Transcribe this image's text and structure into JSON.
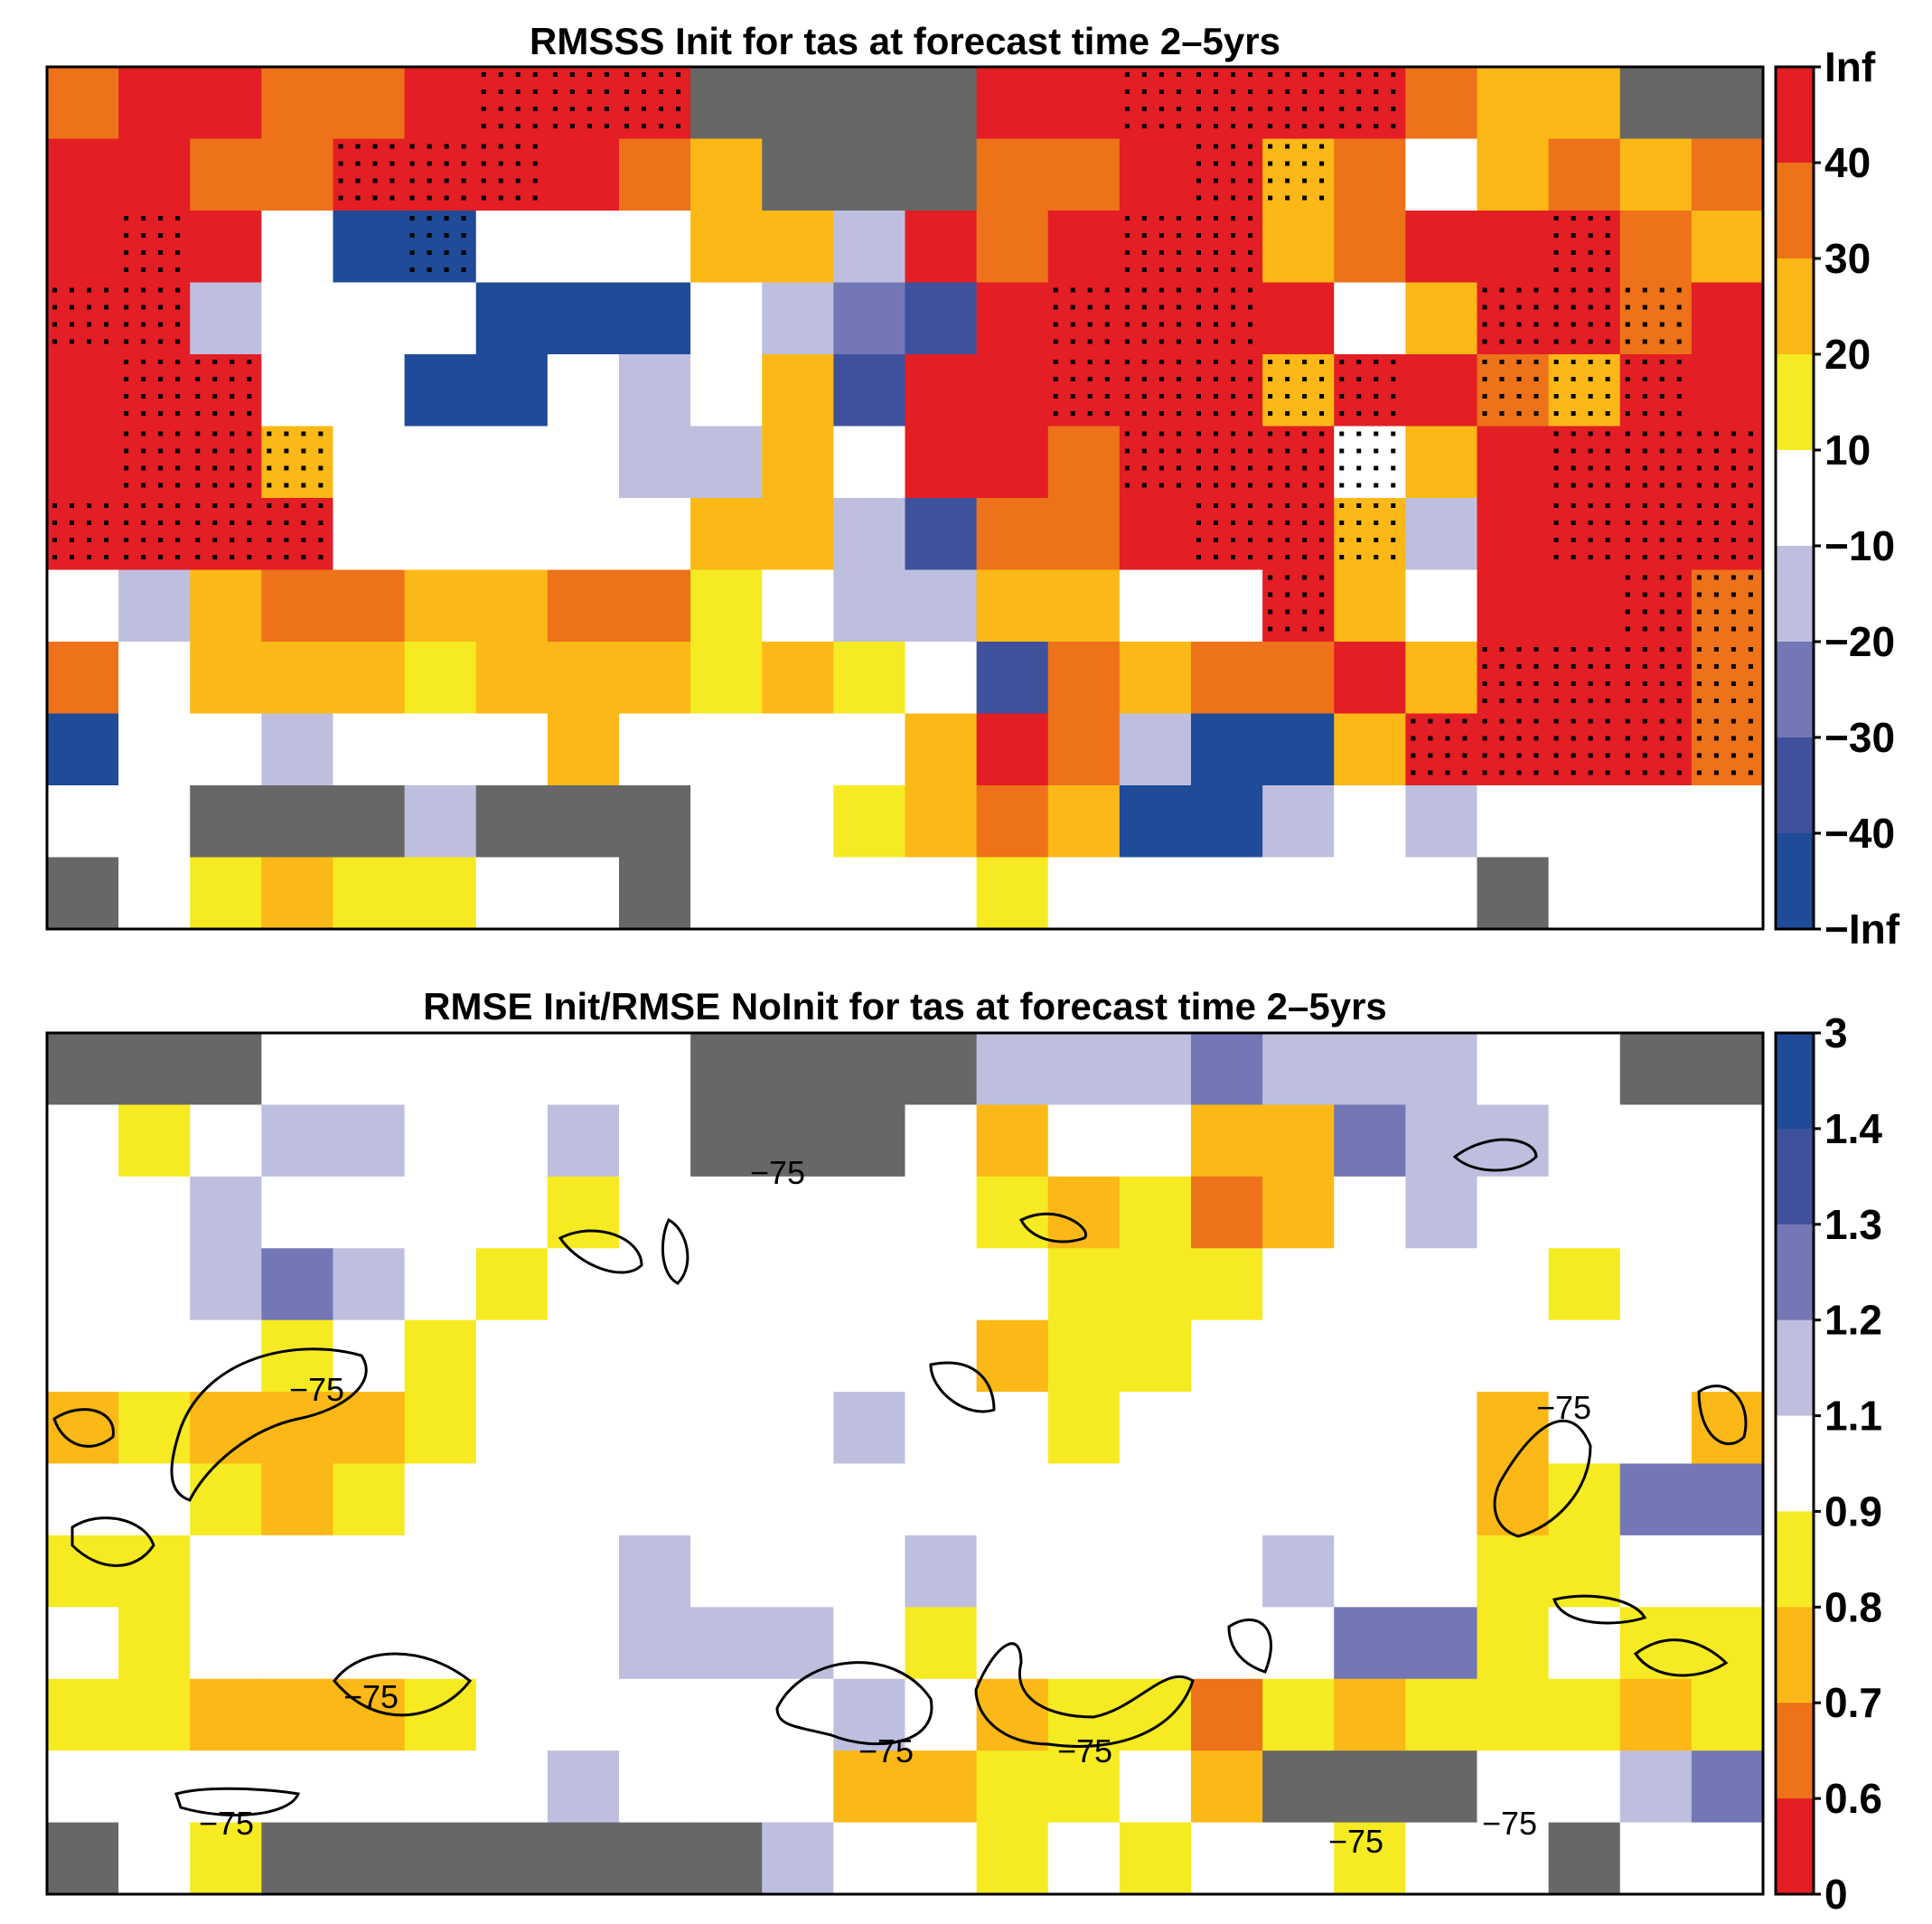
{
  "chart_data": [
    {
      "type": "heatmap",
      "title": "RMSSS Init for tas at forecast time 2–5yrs",
      "colorbar_labels": [
        "Inf",
        "40",
        "30",
        "20",
        "10",
        "−10",
        "−20",
        "−30",
        "−40",
        "−Inf"
      ],
      "colorbar_colors": [
        "#e31e24",
        "#ee7219",
        "#fbb816",
        "#f6ea22",
        "#ffffff",
        "#bebfdf",
        "#7377b5",
        "#3f519c",
        "#1f4b98"
      ],
      "legend_key": {
        "R": 0,
        "O": 1,
        "A": 2,
        "Y": 3,
        "W": 4,
        "L": 5,
        "M": 6,
        "B": 7,
        "D": 8,
        "G": "missing"
      },
      "missing_color": "#676767",
      "grid_rows": [
        "ORROORRRRGGGGRRRRRROAAGG",
        "RROORRRROAGGGOORRAOWAOAO",
        "RRRWDDWWWAALRORRRAORRROA",
        "RRLWWWDDDWLMBRRRRRWARROR",
        "RRRWWDDWLWABRRRRRARROARR",
        "RRRAWWWWLLAWRRORRRWARRRR",
        "RRRRWWWWWAALBOORRRALRRRR",
        "WLAOOAAOOYWLLAAWWRAWRRRO",
        "OWAAAYAAAYAYWBOAOORARRRO",
        "DWWLWWWAWWWWAROLDDARRRRO",
        "WWGGGLGGGWWYAOADDLWLWWWW",
        "GWYAYYWWGWWWWYWWWWWWGWWW"
      ],
      "stipple_rows": [
        "000000111000000111100000",
        "000011100000000011000000",
        "010001000000000110000100",
        "110000000000001110001110",
        "011000000000001111101110",
        "011100000000000111100111",
        "111100000000000011100111",
        "000000000000000001000011",
        "000000000000000000001111",
        "000000000000000000011111",
        "000000000000000000000000",
        "000000000000000000000000"
      ]
    },
    {
      "type": "heatmap",
      "title": "RMSE Init/RMSE NoInit for tas at forecast time 2–5yrs",
      "colorbar_labels": [
        "3",
        "1.4",
        "1.3",
        "1.2",
        "1.1",
        "0.9",
        "0.8",
        "0.7",
        "0.6",
        "0"
      ],
      "colorbar_colors": [
        "#1f4b98",
        "#3f519c",
        "#7377b5",
        "#bebfdf",
        "#ffffff",
        "#f6ea22",
        "#fbb816",
        "#ee7219",
        "#e31e24"
      ],
      "legend_key": {
        "D": 0,
        "B": 1,
        "M": 2,
        "L": 3,
        "W": 4,
        "Y": 5,
        "A": 6,
        "O": 7,
        "R": 8,
        "G": "missing"
      },
      "missing_color": "#676767",
      "grid_rows": [
        "GGGWWWWWWGGGGLLLMLLLWWGG",
        "WYWLLWWLWGGGWAWWAAMLLWWW",
        "WWLWWWWYWWWWWYAYOAWLWWWW",
        "WWLMLWYWWWWWWWYYYWWWWYWW",
        "WWWYWYWWWWWWWAYYWWWWWWWW",
        "AYAAAYWWWWWLWWYWWWWWAWWA",
        "WWYAYWWWWWWWWWWWWWWWAYMM",
        "YYWWWWWWLWWWLWWWWLWWYYWW",
        "WYWWWWWWLLLWYWWWWWMMYWYY",
        "YYAAAYWWWWWLWAYYOYAYYYAY",
        "WWWWWWWLWWWAAYYWAGGGWWLM",
        "GWYGGGGGGGLWWYWYWWYWWGWW"
      ],
      "contour_level_label": "−75",
      "contour_labels": [
        "−75",
        "−75",
        "−75",
        "−75",
        "−75",
        "−75",
        "−75",
        "−75",
        "−75"
      ]
    }
  ]
}
